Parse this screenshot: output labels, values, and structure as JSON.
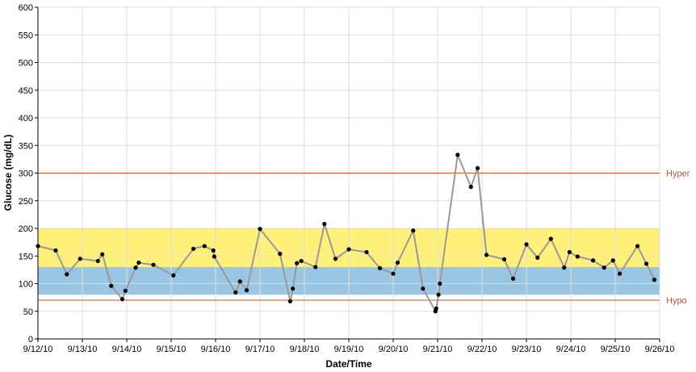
{
  "chart_data": {
    "type": "line",
    "title": "",
    "xlabel": "Date/Time",
    "ylabel": "Glucose (mg/dL)",
    "ylim": [
      0,
      600
    ],
    "yticks": [
      0,
      50,
      100,
      150,
      200,
      250,
      300,
      350,
      400,
      450,
      500,
      550,
      600
    ],
    "xlim": [
      0,
      14
    ],
    "x_tick_labels": [
      "9/12/10",
      "9/13/10",
      "9/14/10",
      "9/15/10",
      "9/16/10",
      "9/17/10",
      "9/18/10",
      "9/19/10",
      "9/20/10",
      "9/21/10",
      "9/22/10",
      "9/23/10",
      "9/24/10",
      "9/25/10",
      "9/26/10"
    ],
    "x_unit": "days since 9/12/10",
    "grid": true,
    "bands": [
      {
        "name": "target-high",
        "from": 130,
        "to": 200,
        "color": "#fff07a"
      },
      {
        "name": "target-low",
        "from": 80,
        "to": 130,
        "color": "#9ac6e4"
      }
    ],
    "thresholds": [
      {
        "label": "Hyper",
        "value": 300,
        "color": "#c0561d"
      },
      {
        "label": "Hypo",
        "value": 70,
        "color": "#c0561d"
      }
    ],
    "series": [
      {
        "name": "Glucose",
        "line_color": "#999999",
        "marker_color": "#000000",
        "points": [
          {
            "x": 0.0,
            "y": 168
          },
          {
            "x": 0.4,
            "y": 160
          },
          {
            "x": 0.65,
            "y": 117
          },
          {
            "x": 0.95,
            "y": 145
          },
          {
            "x": 1.35,
            "y": 141
          },
          {
            "x": 1.45,
            "y": 153
          },
          {
            "x": 1.65,
            "y": 96
          },
          {
            "x": 1.9,
            "y": 72
          },
          {
            "x": 1.97,
            "y": 87
          },
          {
            "x": 2.2,
            "y": 129
          },
          {
            "x": 2.27,
            "y": 138
          },
          {
            "x": 2.6,
            "y": 134
          },
          {
            "x": 3.05,
            "y": 115
          },
          {
            "x": 3.5,
            "y": 163
          },
          {
            "x": 3.75,
            "y": 168
          },
          {
            "x": 3.95,
            "y": 160
          },
          {
            "x": 3.97,
            "y": 149
          },
          {
            "x": 4.45,
            "y": 84
          },
          {
            "x": 4.55,
            "y": 104
          },
          {
            "x": 4.7,
            "y": 88
          },
          {
            "x": 5.0,
            "y": 199
          },
          {
            "x": 5.45,
            "y": 154
          },
          {
            "x": 5.68,
            "y": 68
          },
          {
            "x": 5.74,
            "y": 91
          },
          {
            "x": 5.83,
            "y": 137
          },
          {
            "x": 5.93,
            "y": 141
          },
          {
            "x": 6.25,
            "y": 130
          },
          {
            "x": 6.45,
            "y": 208
          },
          {
            "x": 6.7,
            "y": 145
          },
          {
            "x": 7.0,
            "y": 162
          },
          {
            "x": 7.4,
            "y": 157
          },
          {
            "x": 7.7,
            "y": 128
          },
          {
            "x": 8.0,
            "y": 118
          },
          {
            "x": 8.1,
            "y": 138
          },
          {
            "x": 8.45,
            "y": 196
          },
          {
            "x": 8.67,
            "y": 91
          },
          {
            "x": 8.95,
            "y": 50
          },
          {
            "x": 8.97,
            "y": 55
          },
          {
            "x": 9.02,
            "y": 80
          },
          {
            "x": 9.05,
            "y": 100
          },
          {
            "x": 9.45,
            "y": 333
          },
          {
            "x": 9.75,
            "y": 275
          },
          {
            "x": 9.9,
            "y": 309
          },
          {
            "x": 10.1,
            "y": 152
          },
          {
            "x": 10.5,
            "y": 144
          },
          {
            "x": 10.7,
            "y": 109
          },
          {
            "x": 11.0,
            "y": 171
          },
          {
            "x": 11.25,
            "y": 147
          },
          {
            "x": 11.55,
            "y": 181
          },
          {
            "x": 11.85,
            "y": 129
          },
          {
            "x": 11.97,
            "y": 157
          },
          {
            "x": 12.15,
            "y": 149
          },
          {
            "x": 12.5,
            "y": 142
          },
          {
            "x": 12.75,
            "y": 129
          },
          {
            "x": 12.95,
            "y": 142
          },
          {
            "x": 13.1,
            "y": 118
          },
          {
            "x": 13.5,
            "y": 168
          },
          {
            "x": 13.7,
            "y": 136
          },
          {
            "x": 13.88,
            "y": 107
          }
        ]
      }
    ]
  }
}
